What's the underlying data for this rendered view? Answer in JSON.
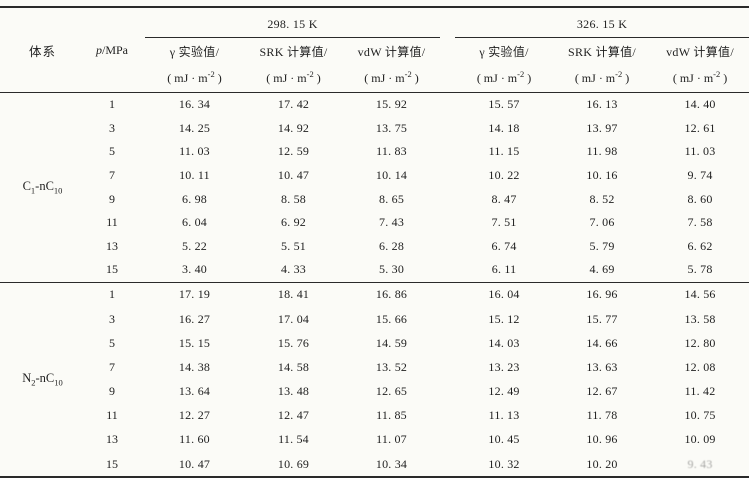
{
  "header": {
    "system_label": "体系",
    "pressure_italic": "p",
    "pressure_rest": "/MPa",
    "temperature_groups": [
      "298. 15 K",
      "326. 15 K"
    ],
    "subcolumns": [
      {
        "name": "γ 实验值/",
        "unit_prefix": "( mJ · m",
        "unit_sup": "-2",
        "unit_suffix": " )"
      },
      {
        "name": "SRK 计算值/",
        "unit_prefix": "( mJ · m",
        "unit_sup": "-2",
        "unit_suffix": " )"
      },
      {
        "name": "vdW 计算值/",
        "unit_prefix": "( mJ · m",
        "unit_sup": "-2",
        "unit_suffix": " )"
      }
    ]
  },
  "groups": [
    {
      "system_parts": {
        "m1": "C",
        "s1": "1",
        "m2": "-nC",
        "s2": "10"
      },
      "rows": [
        {
          "p": "1",
          "v": [
            "16. 34",
            "17. 42",
            "15. 92",
            "15. 57",
            "16. 13",
            "14. 40"
          ]
        },
        {
          "p": "3",
          "v": [
            "14. 25",
            "14. 92",
            "13. 75",
            "14. 18",
            "13. 97",
            "12. 61"
          ]
        },
        {
          "p": "5",
          "v": [
            "11. 03",
            "12. 59",
            "11. 83",
            "11. 15",
            "11. 98",
            "11. 03"
          ]
        },
        {
          "p": "7",
          "v": [
            "10. 11",
            "10. 47",
            "10. 14",
            "10. 22",
            "10. 16",
            "9. 74"
          ]
        },
        {
          "p": "9",
          "v": [
            "6. 98",
            "8. 58",
            "8. 65",
            "8. 47",
            "8. 52",
            "8. 60"
          ]
        },
        {
          "p": "11",
          "v": [
            "6. 04",
            "6. 92",
            "7. 43",
            "7. 51",
            "7. 06",
            "7. 58"
          ]
        },
        {
          "p": "13",
          "v": [
            "5. 22",
            "5. 51",
            "6. 28",
            "6. 74",
            "5. 79",
            "6. 62"
          ]
        },
        {
          "p": "15",
          "v": [
            "3. 40",
            "4. 33",
            "5. 30",
            "6. 11",
            "4. 69",
            "5. 78"
          ]
        }
      ]
    },
    {
      "system_parts": {
        "m1": "N",
        "s1": "2",
        "m2": "-nC",
        "s2": "10"
      },
      "rows": [
        {
          "p": "1",
          "v": [
            "17. 19",
            "18. 41",
            "16. 86",
            "16. 04",
            "16. 96",
            "14. 56"
          ]
        },
        {
          "p": "3",
          "v": [
            "16. 27",
            "17. 04",
            "15. 66",
            "15. 12",
            "15. 77",
            "13. 58"
          ]
        },
        {
          "p": "5",
          "v": [
            "15. 15",
            "15. 76",
            "14. 59",
            "14. 03",
            "14. 66",
            "12. 80"
          ]
        },
        {
          "p": "7",
          "v": [
            "14. 38",
            "14. 58",
            "13. 52",
            "13. 23",
            "13. 63",
            "12. 08"
          ]
        },
        {
          "p": "9",
          "v": [
            "13. 64",
            "13. 48",
            "12. 65",
            "12. 49",
            "12. 67",
            "11. 42"
          ]
        },
        {
          "p": "11",
          "v": [
            "12. 27",
            "12. 47",
            "11. 85",
            "11. 13",
            "11. 78",
            "10. 75"
          ]
        },
        {
          "p": "13",
          "v": [
            "11. 60",
            "11. 54",
            "11. 07",
            "10. 45",
            "10. 96",
            "10. 09"
          ]
        },
        {
          "p": "15",
          "v": [
            "10. 47",
            "10. 69",
            "10. 34",
            "10. 32",
            "10. 20",
            "9. 43"
          ]
        }
      ]
    }
  ],
  "faded_cell": {
    "group": 1,
    "row": 7,
    "col": 5
  },
  "colors": {
    "rule": "#2a2a2a",
    "text": "#1e1e1e",
    "background": "#fbfbf7"
  }
}
